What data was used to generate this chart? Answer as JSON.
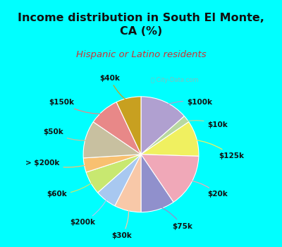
{
  "title": "Income distribution in South El Monte,\nCA (%)",
  "subtitle": "Hispanic or Latino residents",
  "background_cyan": "#00FFFF",
  "background_chart_color": "#d4ede0",
  "slices": [
    {
      "label": "$100k",
      "value": 13.5,
      "color": "#b0a0d0"
    },
    {
      "label": "$10k",
      "value": 2.0,
      "color": "#b8d8a0"
    },
    {
      "label": "$125k",
      "value": 10.0,
      "color": "#f0f060"
    },
    {
      "label": "$20k",
      "value": 15.0,
      "color": "#f0a8b8"
    },
    {
      "label": "$75k",
      "value": 9.5,
      "color": "#9090cc"
    },
    {
      "label": "$30k",
      "value": 7.5,
      "color": "#f8c8a8"
    },
    {
      "label": "$200k",
      "value": 6.0,
      "color": "#a8c8f0"
    },
    {
      "label": "$60k",
      "value": 6.5,
      "color": "#c8e870"
    },
    {
      "label": "> $200k",
      "value": 4.0,
      "color": "#f8c070"
    },
    {
      "label": "$50k",
      "value": 10.5,
      "color": "#c8c0a0"
    },
    {
      "label": "$150k",
      "value": 8.5,
      "color": "#e88888"
    },
    {
      "label": "$40k",
      "value": 7.0,
      "color": "#c8a020"
    }
  ],
  "label_fontsize": 7.5,
  "title_fontsize": 11.5,
  "subtitle_fontsize": 9.5,
  "title_color": "#111111",
  "subtitle_color": "#cc3333",
  "watermark_color": "#aaaaaa"
}
